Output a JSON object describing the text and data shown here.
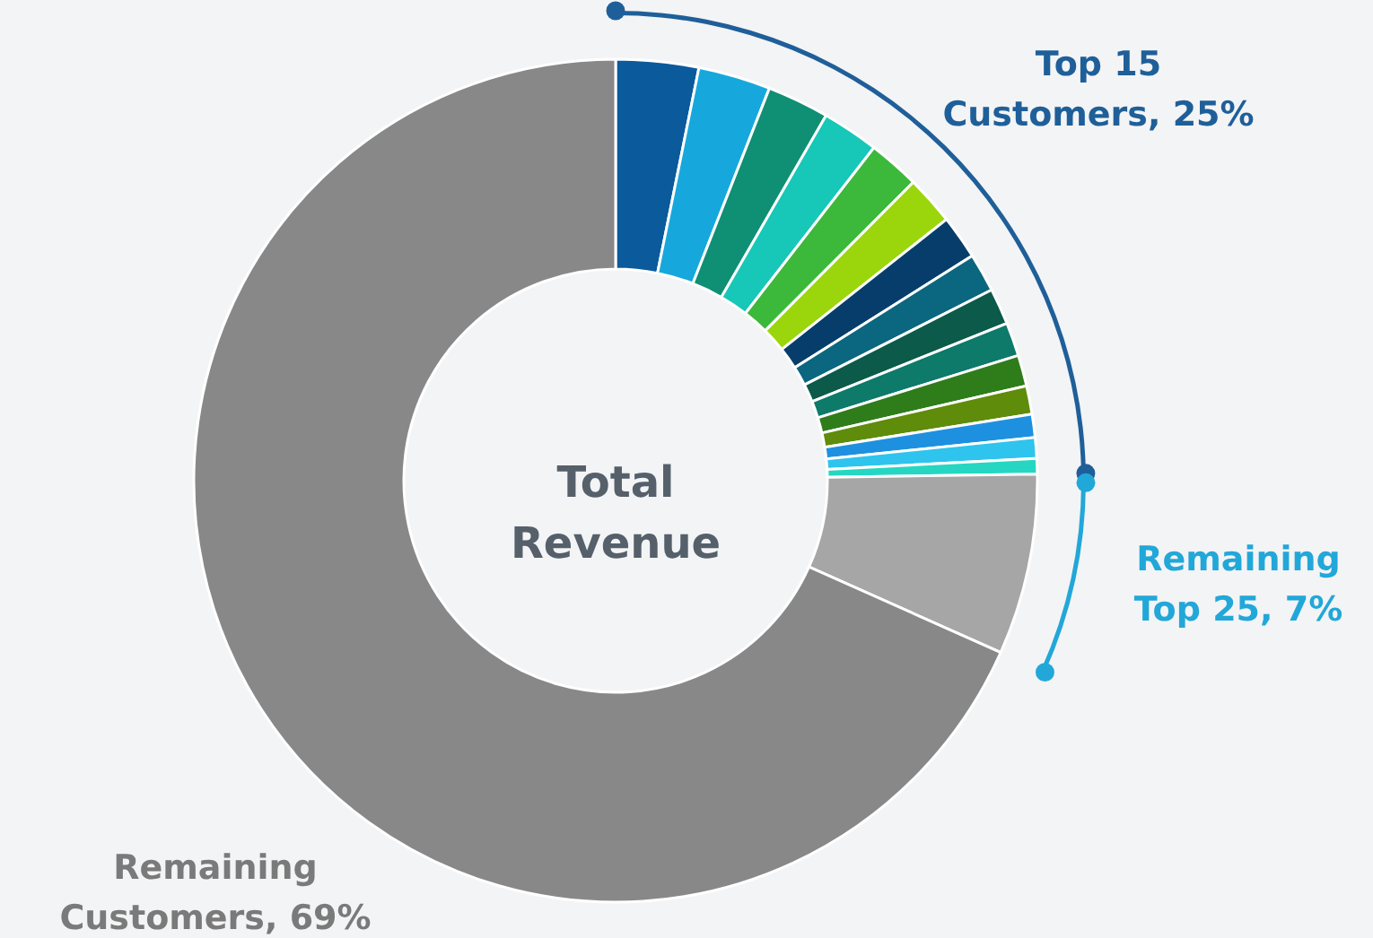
{
  "chart_data": {
    "type": "donut",
    "title": "Total Revenue",
    "categories": [
      null,
      null,
      null,
      null,
      null,
      null,
      null,
      null,
      null,
      null,
      null,
      null,
      null,
      null,
      null,
      null,
      null
    ],
    "values": [
      3.2,
      2.8,
      2.4,
      2.2,
      2.0,
      1.9,
      1.7,
      1.5,
      1.4,
      1.3,
      1.2,
      1.1,
      0.9,
      0.8,
      0.6,
      7,
      69
    ],
    "colors": [
      "#0a5a9c",
      "#16a8dc",
      "#0f8f74",
      "#17c7b8",
      "#3cb83a",
      "#9bd60c",
      "#063d6b",
      "#0b6680",
      "#0b5a4a",
      "#0d7a6a",
      "#2e7d1a",
      "#5f8c0a",
      "#1e90e0",
      "#2fc4ee",
      "#25d7c2",
      "#a6a6a6",
      "#888888"
    ],
    "annotations": [
      "Top 15\nCustomers, 25%",
      "Remaining\nTop 25, 7%",
      "Remaining\nCustomers, 69%"
    ]
  }
}
